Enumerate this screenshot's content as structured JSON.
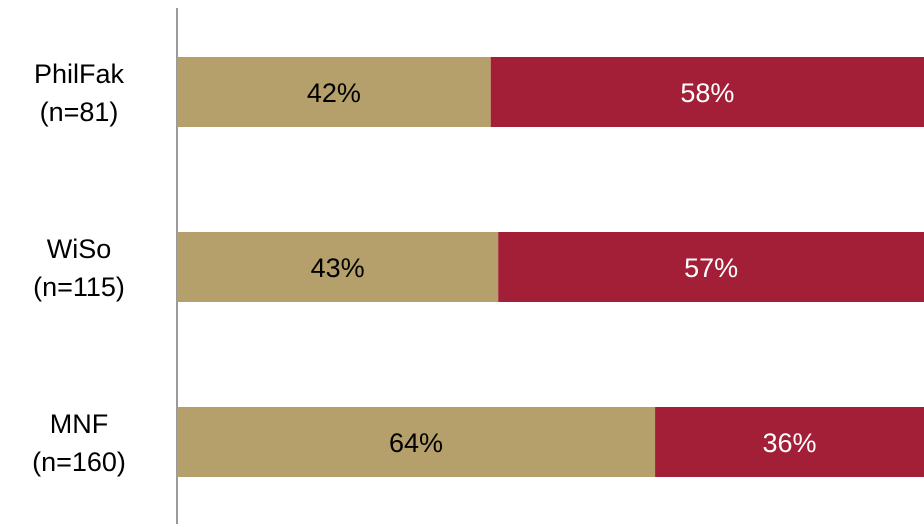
{
  "chart_data": {
    "type": "bar",
    "orientation": "horizontal",
    "stacked": true,
    "percent_stacked": true,
    "categories": [
      [
        "PhilFak",
        "(n=81)"
      ],
      [
        "WiSo",
        "(n=115)"
      ],
      [
        "MNF",
        "(n=160)"
      ]
    ],
    "series": [
      {
        "values": [
          42,
          43,
          64
        ],
        "labels": [
          "42%",
          "43%",
          "64%"
        ],
        "color": "#b5a06b",
        "label_color": "#000000"
      },
      {
        "values": [
          58,
          57,
          36
        ],
        "labels": [
          "58%",
          "57%",
          "36%"
        ],
        "color": "#a31e37",
        "label_color": "#ffffff"
      }
    ],
    "xlim": [
      0,
      100
    ],
    "grid": false,
    "legend": "none",
    "axis_color": "#9a9a9a"
  }
}
